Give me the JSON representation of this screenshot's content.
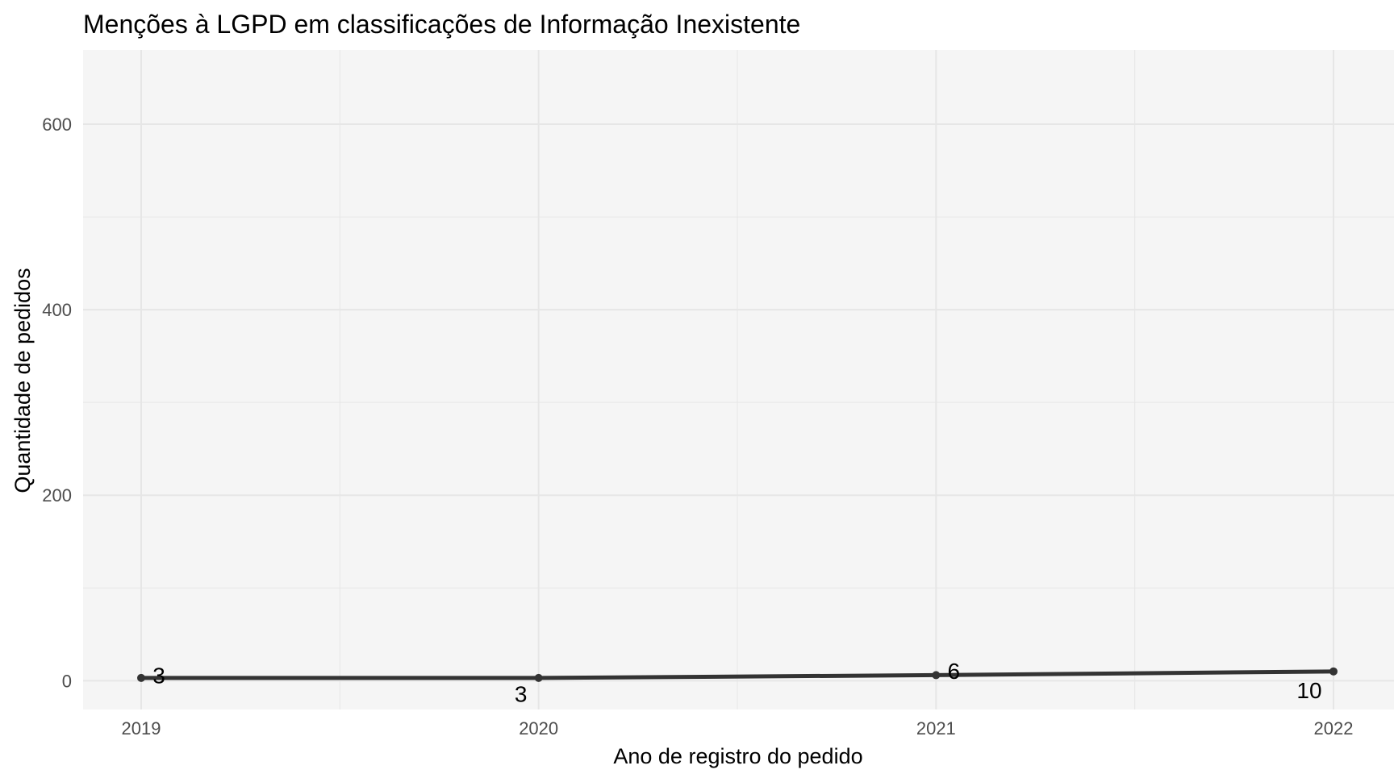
{
  "chart_data": {
    "type": "line",
    "title": "Menções à LGPD em classificações de Informação Inexistente",
    "xlabel": "Ano de registro do pedido",
    "ylabel": "Quantidade de pedidos",
    "x": [
      "2019",
      "2020",
      "2021",
      "2022"
    ],
    "series": [
      {
        "values": [
          3,
          3,
          6,
          10
        ]
      }
    ],
    "data_labels": [
      "3",
      "3",
      "6",
      "10"
    ],
    "y_ticks": [
      0,
      200,
      400,
      600
    ],
    "ylim": [
      -31,
      680
    ],
    "grid": true,
    "panel_background": "#f5f5f5",
    "grid_color": "#e6e6e6",
    "line_color": "#333333",
    "text_color": "#000000",
    "tick_color": "#4d4d4d"
  }
}
